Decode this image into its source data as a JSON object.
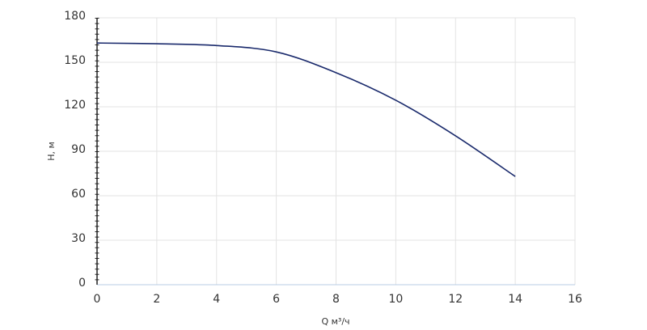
{
  "chart_data": {
    "type": "line",
    "x_label": "Q м³/ч",
    "y_label": "H, м",
    "x": [
      0,
      2,
      4,
      6,
      8,
      10,
      12,
      14
    ],
    "series": [
      {
        "name": "H",
        "color": "#1a2a6c",
        "values": [
          163,
          162.5,
          161.3,
          157,
          143,
          124.4,
          100.4,
          73
        ]
      }
    ],
    "xlim": [
      0,
      16
    ],
    "xticks": [
      0,
      2,
      4,
      6,
      8,
      10,
      12,
      14,
      16
    ],
    "ylim": [
      0,
      180
    ],
    "yticks": [
      0,
      30,
      60,
      90,
      120,
      150,
      180
    ],
    "grid": true
  }
}
